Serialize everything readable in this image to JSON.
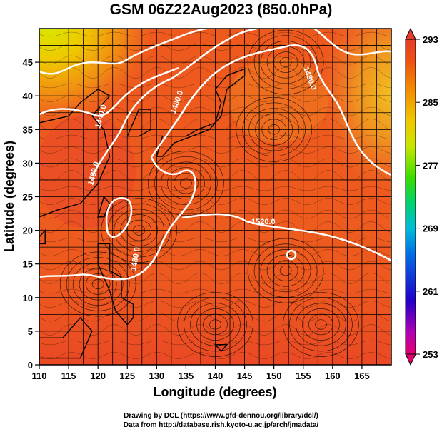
{
  "title": "GSM 06Z22Aug2023 (850.0hPa)",
  "map": {
    "x_axis_label": "Longitude (degrees)",
    "y_axis_label": "Latitude  (degrees)",
    "lon_range": [
      110,
      170
    ],
    "lat_range": [
      0,
      50
    ],
    "lon_ticks": [
      "110",
      "115",
      "120",
      "125",
      "130",
      "135",
      "140",
      "145",
      "150",
      "155",
      "160",
      "165"
    ],
    "lat_ticks": [
      "0",
      "5",
      "10",
      "15",
      "20",
      "25",
      "30",
      "35",
      "40",
      "45"
    ],
    "contour_labels": [
      "1440.0",
      "1480.0",
      "1480.0",
      "1520.0",
      "1480.0",
      "1480.0"
    ],
    "colorbar": {
      "ticks": [
        "293",
        "285",
        "277",
        "269",
        "261",
        "253"
      ],
      "min": 253,
      "max": 293,
      "colors": [
        "#e3006f",
        "#9b00c8",
        "#1800c8",
        "#004ae6",
        "#00b4f0",
        "#00d28c",
        "#28dc00",
        "#a0e600",
        "#f0dc00",
        "#f5a000",
        "#f07800",
        "#ee4a10",
        "#e63728"
      ]
    }
  },
  "credit": {
    "line1": "Drawing by DCL (https://www.gfd-dennou.org/library/dcl/)",
    "line2": "Data from http://database.rish.kyoto-u.ac.jp/arch/jmadata/"
  }
}
